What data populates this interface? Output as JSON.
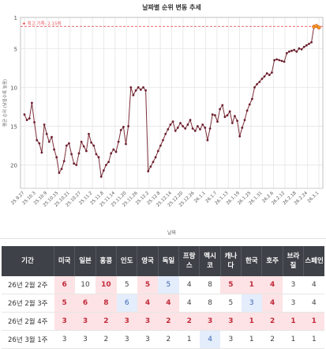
{
  "chart_data": {
    "type": "line",
    "title": "날짜별 순위 변동 추세",
    "xlabel": "날짜",
    "ylabel": "평균 순위 (낮을수록 높음)",
    "yreversed": true,
    "ylim": [
      1,
      23
    ],
    "yticks": [
      1,
      5,
      10,
      15,
      20
    ],
    "best_label": "최고 기록: 2.15위",
    "best_value": 2.15,
    "grid": true,
    "xtick_labels": [
      "25.9.27",
      "25.10.3",
      "25.10.9",
      "25.10.15",
      "25.10.21",
      "25.10.27",
      "25.11.2",
      "25.11.8",
      "25.11.14",
      "25.11.20",
      "25.11.26",
      "25.12.2",
      "25.12.8",
      "25.12.14",
      "25.12.20",
      "25.12.26",
      "26.1.1",
      "26.1.7",
      "26.1.13",
      "26.1.19",
      "26.1.25",
      "26.1.31",
      "26.2.6",
      "26.2.12",
      "26.2.18",
      "26.2.24",
      "26.3.1"
    ],
    "values": [
      13.5,
      14.2,
      14.0,
      12.0,
      14.5,
      16.8,
      17.2,
      18.4,
      14.8,
      16.0,
      17.0,
      16.4,
      18.0,
      19.0,
      21.0,
      20.5,
      19.5,
      17.5,
      17.2,
      18.6,
      19.8,
      20.0,
      18.5,
      17.0,
      17.6,
      18.2,
      16.0,
      17.1,
      17.5,
      18.6,
      19.0,
      21.5,
      20.7,
      20.0,
      19.6,
      18.5,
      18.0,
      18.3,
      17.0,
      15.5,
      15.1,
      17.3,
      15.0,
      10.0,
      11.0,
      10.4,
      10.0,
      10.3,
      10.0,
      10.4,
      20.8,
      20.2,
      19.6,
      19.0,
      18.2,
      17.5,
      16.8,
      16.0,
      15.4,
      14.8,
      14.4,
      15.6,
      15.2,
      14.6,
      15.0,
      15.3,
      14.8,
      14.2,
      15.3,
      15.6,
      15.0,
      15.4,
      14.8,
      15.2,
      16.8,
      15.3,
      13.5,
      13.6,
      14.4,
      12.8,
      12.3,
      13.8,
      13.6,
      13.1,
      14.6,
      13.7,
      14.3,
      16.3,
      15.2,
      14.2,
      13.0,
      12.2,
      11.5,
      10.0,
      9.6,
      9.3,
      8.9,
      8.6,
      8.2,
      8.4,
      8.1,
      6.5,
      6.4,
      6.5,
      6.6,
      6.7,
      5.6,
      5.4,
      5.3,
      5.2,
      5.4,
      5.0,
      5.1,
      4.8,
      4.6,
      4.4,
      4.2,
      2.2,
      2.1,
      2.3
    ]
  },
  "table": {
    "period_header": "기간",
    "columns": [
      "미국",
      "일본",
      "홍콩",
      "인도",
      "영국",
      "독일",
      "프랑스",
      "멕시코",
      "캐나다",
      "한국",
      "호주",
      "브라질",
      "스페인"
    ],
    "rows": [
      {
        "period": "26년 2월 2주",
        "cells": [
          [
            "6",
            "up"
          ],
          [
            "10",
            ""
          ],
          [
            "10",
            "up"
          ],
          [
            "5",
            ""
          ],
          [
            "5",
            "up"
          ],
          [
            "5",
            "down"
          ],
          [
            "4",
            ""
          ],
          [
            "8",
            ""
          ],
          [
            "5",
            "up"
          ],
          [
            "1",
            "up"
          ],
          [
            "4",
            "up"
          ],
          [
            "3",
            ""
          ],
          [
            "4",
            ""
          ]
        ]
      },
      {
        "period": "26년 2월 3주",
        "cells": [
          [
            "5",
            "up"
          ],
          [
            "6",
            "up"
          ],
          [
            "8",
            "up"
          ],
          [
            "6",
            "down"
          ],
          [
            "4",
            "up"
          ],
          [
            "4",
            "up"
          ],
          [
            "4",
            ""
          ],
          [
            "8",
            ""
          ],
          [
            "5",
            ""
          ],
          [
            "3",
            "down"
          ],
          [
            "4",
            "up"
          ],
          [
            "3",
            ""
          ],
          [
            "4",
            ""
          ]
        ]
      },
      {
        "period": "26년 2월 4주",
        "cells": [
          [
            "3",
            "up"
          ],
          [
            "3",
            "up"
          ],
          [
            "2",
            "up"
          ],
          [
            "3",
            "up"
          ],
          [
            "3",
            "up"
          ],
          [
            "2",
            "up"
          ],
          [
            "2",
            "up"
          ],
          [
            "3",
            "up"
          ],
          [
            "3",
            "up"
          ],
          [
            "1",
            "up"
          ],
          [
            "2",
            "up"
          ],
          [
            "1",
            "up"
          ],
          [
            "1",
            "up"
          ]
        ]
      },
      {
        "period": "26년 3월 1주",
        "cells": [
          [
            "3",
            ""
          ],
          [
            "3",
            ""
          ],
          [
            "2",
            ""
          ],
          [
            "3",
            ""
          ],
          [
            "3",
            ""
          ],
          [
            "2",
            ""
          ],
          [
            "1",
            ""
          ],
          [
            "4",
            "down"
          ],
          [
            "3",
            ""
          ],
          [
            "1",
            ""
          ],
          [
            "2",
            ""
          ],
          [
            "1",
            ""
          ],
          [
            "1",
            ""
          ]
        ]
      }
    ]
  },
  "colors": {
    "line": "#7b2f3a",
    "dot": "#6e2130",
    "best_line": "#e8535c",
    "grid": "#e5e5e5",
    "header_bg": "#3e4147",
    "up_bg": "#fde3e5",
    "up_text": "#c12a3a",
    "down_bg": "#e4edfb",
    "down_text": "#3b64b4",
    "end_marker": "#f39a1c"
  }
}
